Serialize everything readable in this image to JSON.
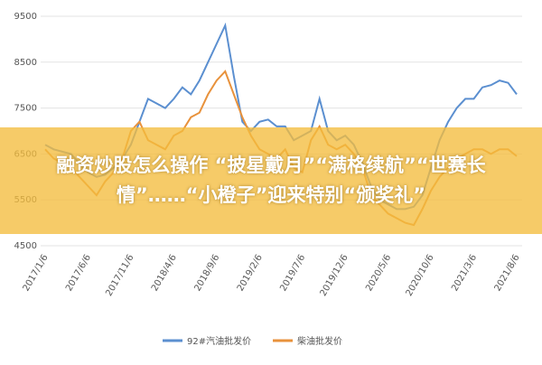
{
  "chart_data": {
    "type": "line",
    "categories": [
      "2017/1/6",
      null,
      null,
      null,
      null,
      "2017/6/6",
      null,
      null,
      null,
      null,
      "2017/11/6",
      null,
      null,
      null,
      null,
      "2018/4/6",
      null,
      null,
      null,
      null,
      "2018/9/6",
      null,
      null,
      null,
      null,
      "2019/2/6",
      null,
      null,
      null,
      null,
      "2019/7/6",
      null,
      null,
      null,
      null,
      "2019/12/6",
      null,
      null,
      null,
      null,
      "2020/5/6",
      null,
      null,
      null,
      null,
      "2020/10/6",
      null,
      null,
      null,
      null,
      "2021/3/6",
      null,
      null,
      null,
      null,
      "2021/8/6"
    ],
    "series": [
      {
        "name": "92#汽油批发价",
        "color": "#5b8fd0",
        "values": [
          6700,
          6600,
          6550,
          6500,
          6300,
          6100,
          6000,
          6050,
          6200,
          6400,
          6700,
          7200,
          7700,
          7600,
          7500,
          7700,
          7950,
          7800,
          8100,
          8500,
          8900,
          9300,
          8200,
          7200,
          7000,
          7200,
          7250,
          7100,
          7100,
          6800,
          6900,
          7000,
          7700,
          7000,
          6800,
          6900,
          6700,
          6300,
          5800,
          5500,
          5400,
          5300,
          5300,
          5350,
          5600,
          6200,
          6800,
          7200,
          7500,
          7700,
          7700,
          7950,
          8000,
          8100,
          8050,
          7800
        ]
      },
      {
        "name": "柴油批发价",
        "color": "#e8923c",
        "values": [
          6600,
          6400,
          6300,
          6200,
          6000,
          5800,
          5600,
          5900,
          6100,
          6400,
          7000,
          7200,
          6800,
          6700,
          6600,
          6900,
          7000,
          7300,
          7400,
          7800,
          8100,
          8300,
          7800,
          7300,
          6900,
          6600,
          6500,
          6400,
          6600,
          6200,
          6100,
          6800,
          7100,
          6700,
          6600,
          6700,
          6500,
          6200,
          5600,
          5400,
          5200,
          5100,
          5000,
          4950,
          5300,
          5700,
          6000,
          6200,
          6400,
          6500,
          6600,
          6600,
          6500,
          6600,
          6600,
          6450
        ]
      }
    ],
    "ylim": [
      4500,
      9500
    ],
    "yticks": [
      4500,
      5500,
      6500,
      7500,
      8500,
      9500
    ],
    "grid": true,
    "legend": "bottom"
  },
  "banner": {
    "title": "融资炒股怎么操作 “披星戴月”“满格续航”“世赛长情”……“小橙子”迎来特别“颁奖礼”"
  }
}
